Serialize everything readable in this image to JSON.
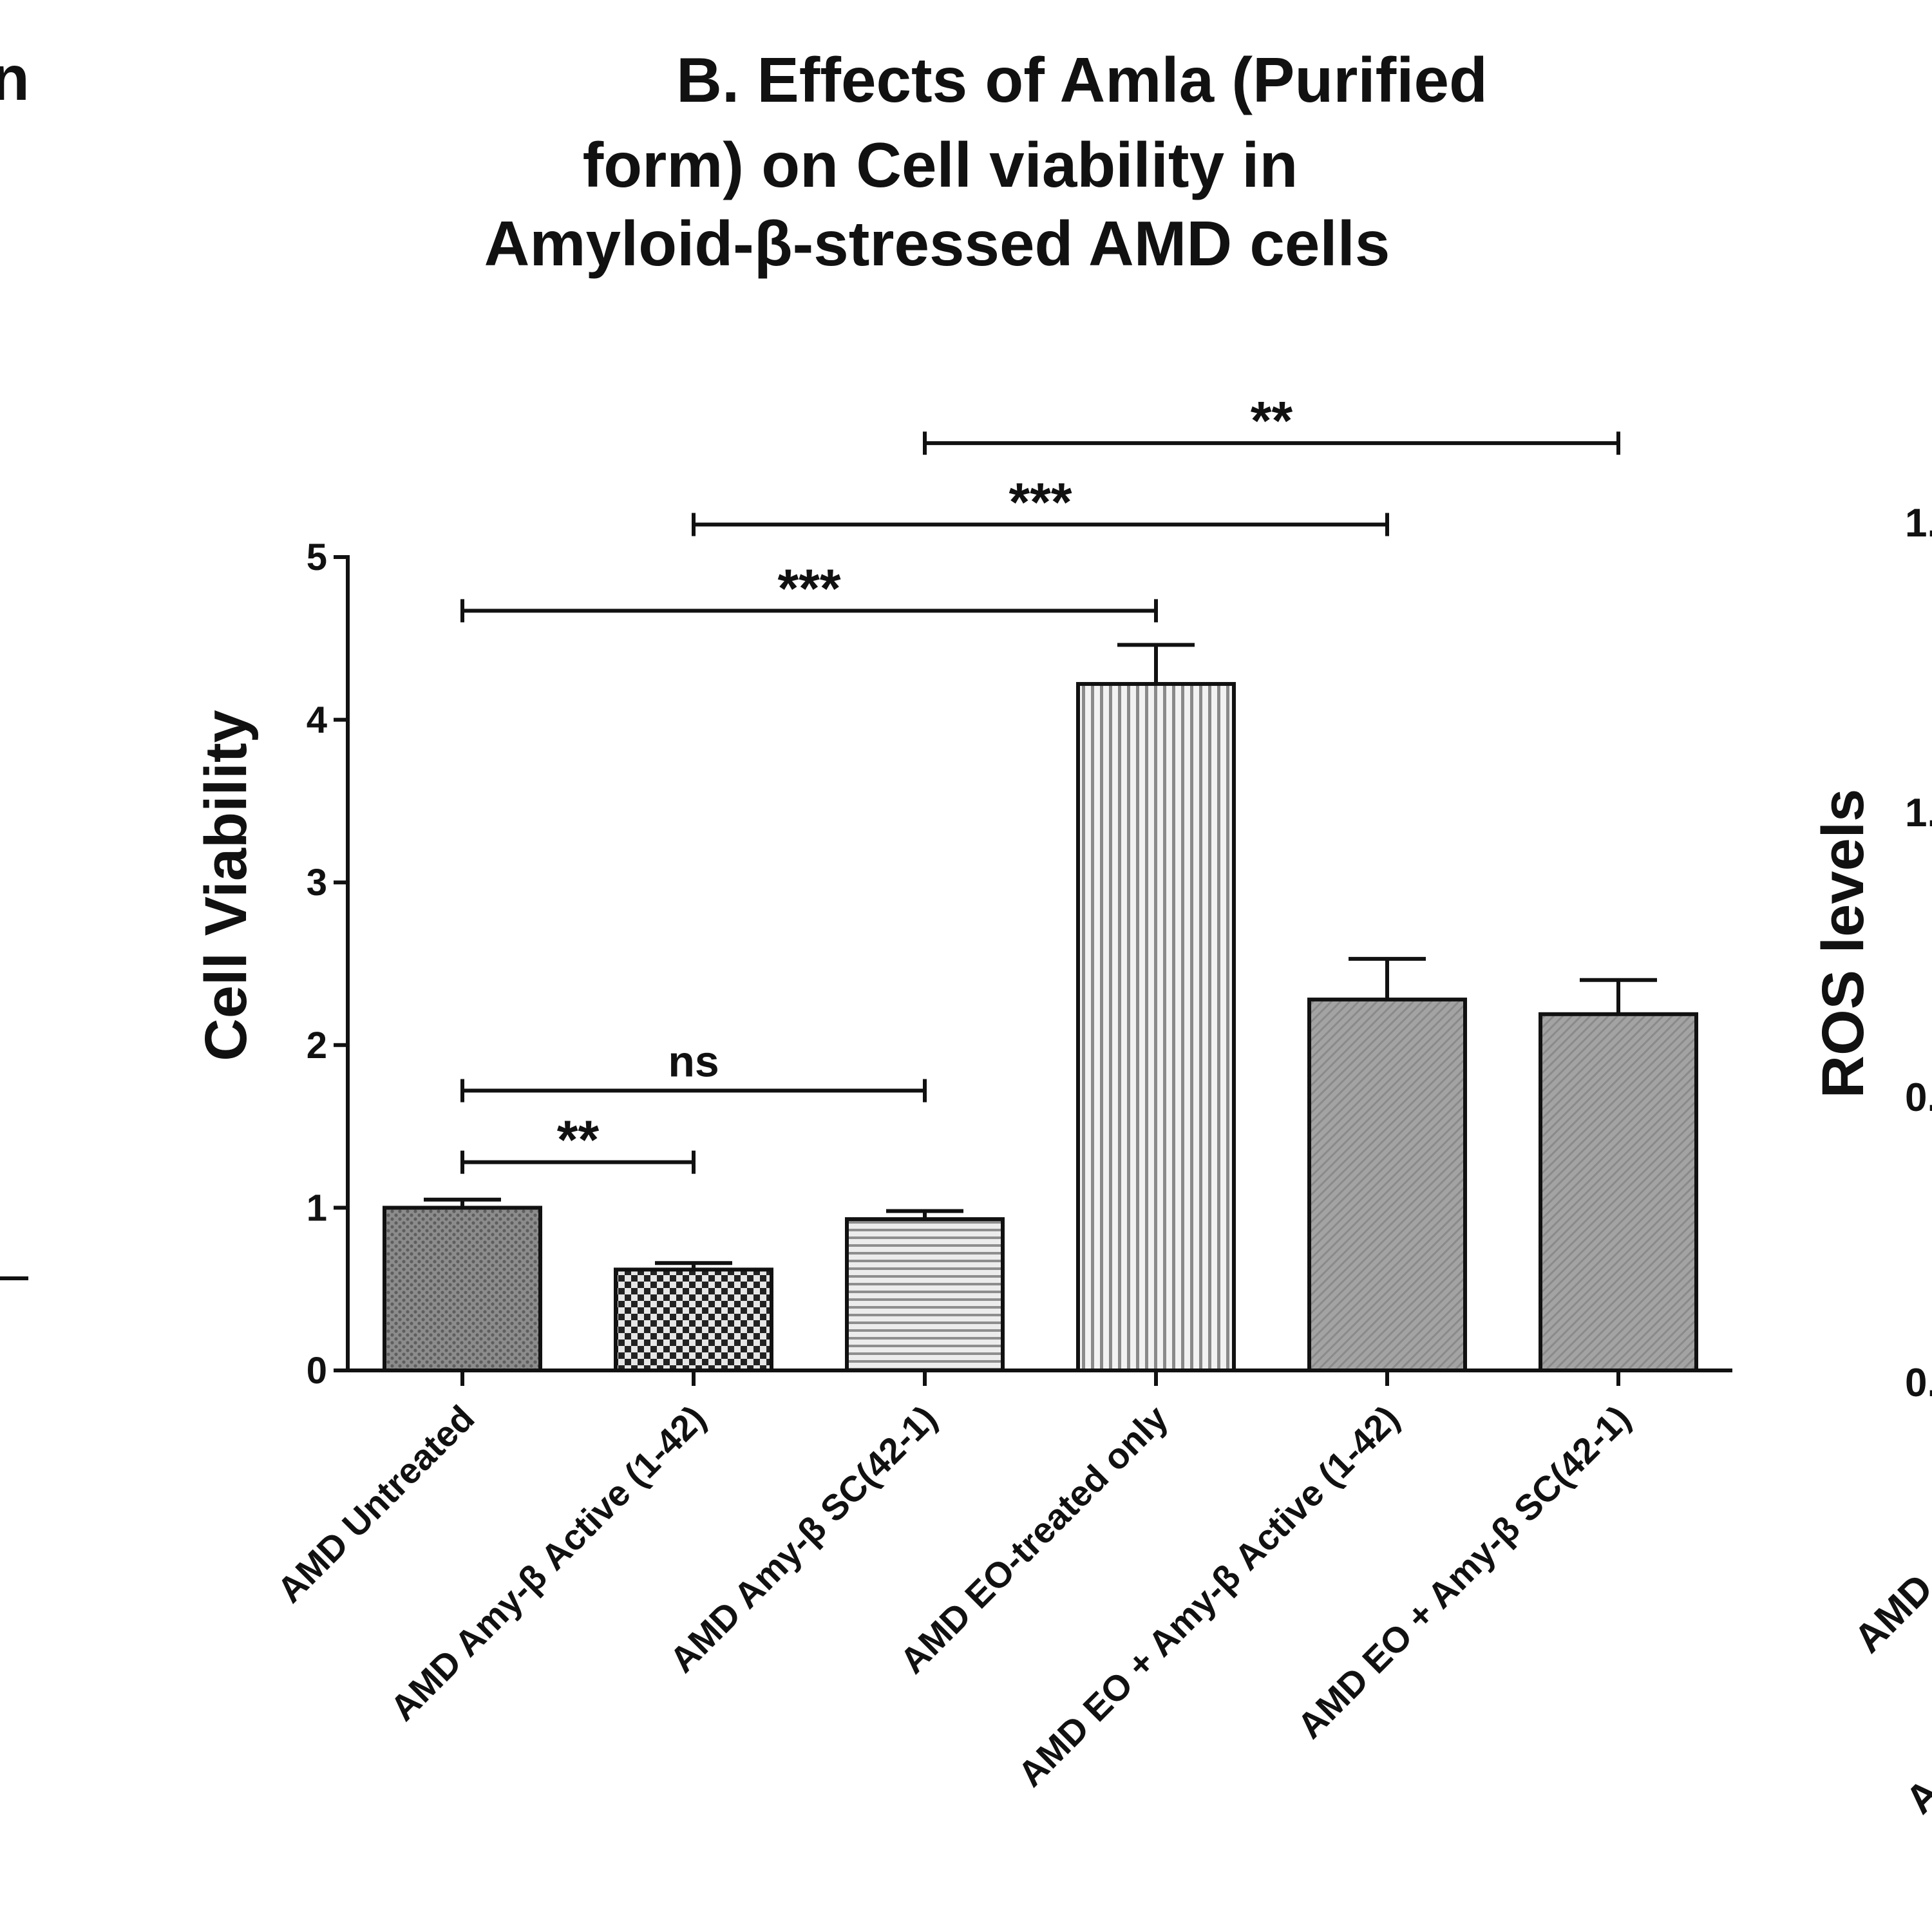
{
  "chart_data": {
    "type": "bar",
    "title_lines": [
      "B. Effects of Amla (Purified",
      "form) on Cell viability in",
      "Amyloid-β-stressed AMD cells"
    ],
    "xlabel": "",
    "ylabel": "Cell Viability",
    "ylim": [
      0,
      5
    ],
    "yticks": [
      "0",
      "1",
      "2",
      "3",
      "4",
      "5"
    ],
    "categories": [
      "AMD Untreated",
      "AMD Amy-β Active (1-42)",
      "AMD Amy-β SC(42-1)",
      "AMD EO-treated only",
      "AMD EO + Amy-β Active (1-42)",
      "AMD EO + Amy-β SC(42-1)"
    ],
    "values": [
      1.0,
      0.62,
      0.93,
      4.22,
      2.28,
      2.19
    ],
    "errors": [
      0.05,
      0.04,
      0.05,
      0.24,
      0.25,
      0.21
    ],
    "fill_patterns": [
      "dense-dots",
      "checker",
      "horizontal-lines",
      "vertical-lines",
      "diagonal-fine",
      "diagonal-fine"
    ],
    "significance": [
      {
        "from": 0,
        "to": 1,
        "label": "**",
        "level": 1.28
      },
      {
        "from": 0,
        "to": 2,
        "label": "ns",
        "level": 1.72
      },
      {
        "from": 0,
        "to": 3,
        "label": "***",
        "level": 4.67
      },
      {
        "from": 1,
        "to": 4,
        "label": "***",
        "level": 5.2
      },
      {
        "from": 2,
        "to": 5,
        "label": "**",
        "level": 5.7
      }
    ]
  },
  "neighbor_fragments": {
    "left_title_fragment": "n",
    "right_ylabel": "ROS levels",
    "right_ticks": [
      "1.",
      "1.",
      "0.",
      "0."
    ],
    "right_xlabel_fragments": [
      "AMD",
      "A"
    ]
  },
  "colors": {
    "ink": "#111111",
    "bar_dark": "#8a8a8a",
    "bar_mid": "#9c9c9c",
    "bar_light": "#d6d6d6"
  }
}
